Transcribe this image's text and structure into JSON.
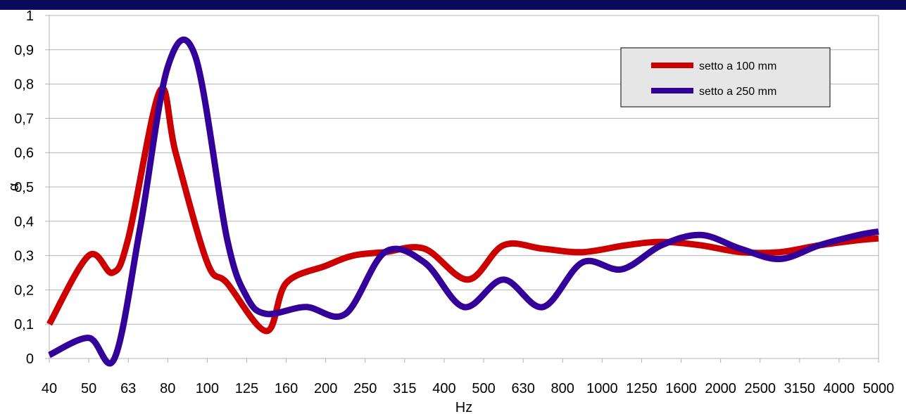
{
  "colors": {
    "top_band": "#0a0a5a",
    "plot_background": "#ffffff",
    "gridline": "#b3b3b3",
    "axis": "#b3b3b3",
    "legend_background": "#e6e6e6",
    "legend_border": "#000000"
  },
  "chart_data": {
    "type": "line",
    "title": "",
    "xlabel": "Hz",
    "ylabel": "α",
    "categories": [
      "40",
      "50",
      "63",
      "80",
      "100",
      "125",
      "160",
      "200",
      "250",
      "315",
      "400",
      "500",
      "630",
      "800",
      "1000",
      "1250",
      "1600",
      "2000",
      "2500",
      "3150",
      "4000",
      "5000"
    ],
    "ylim": [
      0,
      1
    ],
    "yticks": [
      "0",
      "0,1",
      "0,2",
      "0,3",
      "0,4",
      "0,5",
      "0,6",
      "0,7",
      "0,8",
      "0,9",
      "1"
    ],
    "grid": true,
    "legend_position": "top-right",
    "series": [
      {
        "name": "setto a 100 mm",
        "color": "#cc0000",
        "x": [
          0,
          1,
          1.6,
          2,
          2.8,
          3.2,
          4,
          4.5,
          5.5,
          6,
          7,
          7.7,
          8.5,
          9.5,
          10.6,
          11.5,
          12.5,
          13.5,
          14.6,
          15.5,
          16.5,
          17.5,
          18.5,
          19.5,
          20.5,
          21
        ],
        "values": [
          0.1,
          0.3,
          0.25,
          0.35,
          0.78,
          0.6,
          0.28,
          0.22,
          0.08,
          0.22,
          0.27,
          0.3,
          0.31,
          0.32,
          0.23,
          0.33,
          0.32,
          0.31,
          0.33,
          0.34,
          0.33,
          0.31,
          0.31,
          0.33,
          0.345,
          0.35
        ]
      },
      {
        "name": "setto a 250 mm",
        "color": "#330099",
        "x": [
          0,
          1,
          1.65,
          2.3,
          3,
          3.7,
          4.5,
          5,
          5.5,
          6.5,
          7.5,
          8.5,
          9.5,
          10.5,
          11.5,
          12.5,
          13.5,
          14.5,
          15.5,
          16.5,
          17.5,
          18.5,
          19.5,
          20.5,
          21
        ],
        "values": [
          0.01,
          0.06,
          0.0,
          0.38,
          0.85,
          0.88,
          0.35,
          0.18,
          0.13,
          0.15,
          0.13,
          0.31,
          0.28,
          0.15,
          0.23,
          0.15,
          0.28,
          0.26,
          0.33,
          0.36,
          0.32,
          0.29,
          0.33,
          0.36,
          0.37
        ]
      }
    ]
  }
}
